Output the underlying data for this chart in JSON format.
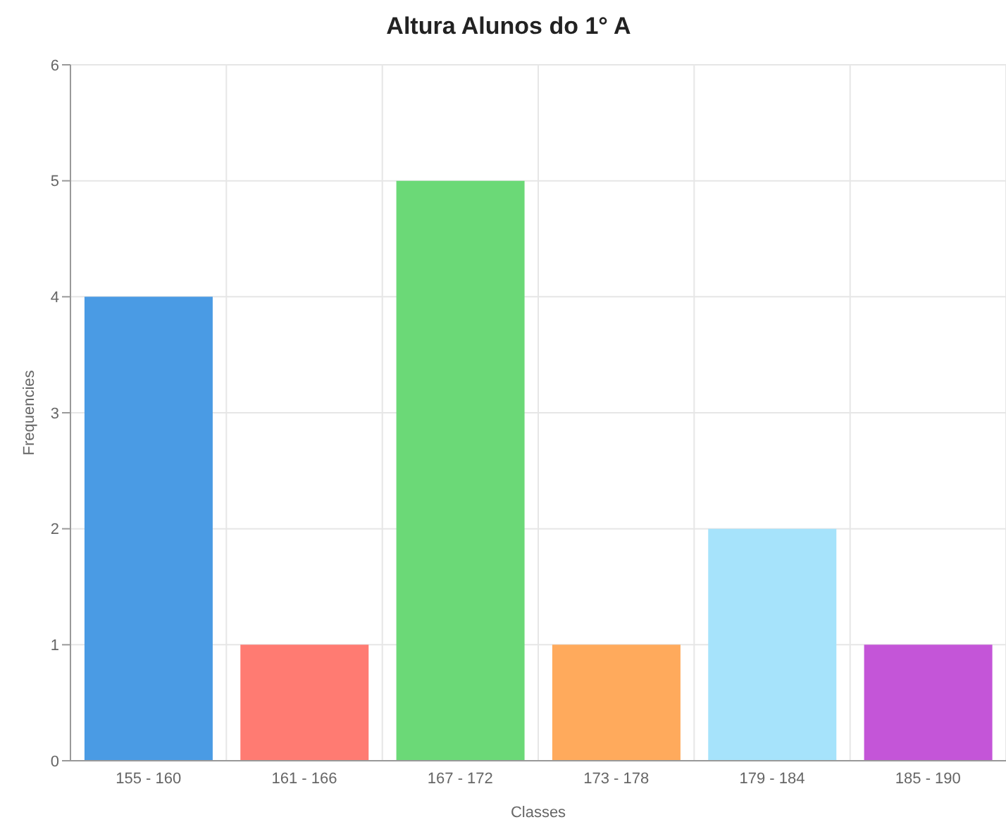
{
  "chart_data": {
    "type": "bar",
    "title": "Altura Alunos do 1° A",
    "xlabel": "Classes",
    "ylabel": "Frequencies",
    "categories": [
      "155 - 160",
      "161 - 166",
      "167 - 172",
      "173 - 178",
      "179 - 184",
      "185 - 190"
    ],
    "values": [
      4,
      1,
      5,
      1,
      2,
      1
    ],
    "colors": [
      "#4a9be4",
      "#ff7b72",
      "#6bd977",
      "#ffaa5c",
      "#a6e3fb",
      "#c455d8"
    ],
    "ylim": [
      0,
      6
    ],
    "yticks": [
      0,
      1,
      2,
      3,
      4,
      5,
      6
    ],
    "grid": true
  }
}
